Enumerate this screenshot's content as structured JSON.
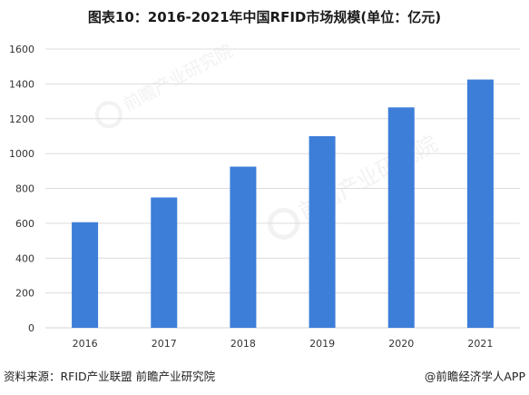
{
  "title": "图表10：2016-2021年中国RFID市场规模(单位：亿元)",
  "source_note": "资料来源：RFID产业联盟 前瞻产业研究院",
  "watermark_credit": "@前瞻经济学人APP",
  "watermark_logo": "前瞻产业研究院",
  "colors": {
    "bar": "#3d7ed9",
    "grid": "#dcdcdc",
    "axis_text": "#333333"
  },
  "chart_data": {
    "type": "bar",
    "categories": [
      "2016",
      "2017",
      "2018",
      "2019",
      "2020",
      "2021"
    ],
    "values": [
      606,
      748,
      925,
      1100,
      1265,
      1425
    ],
    "ylim": [
      0,
      1600
    ],
    "yticks": [
      0,
      200,
      400,
      600,
      800,
      1000,
      1200,
      1400,
      1600
    ],
    "grid": true,
    "legend": "none"
  }
}
